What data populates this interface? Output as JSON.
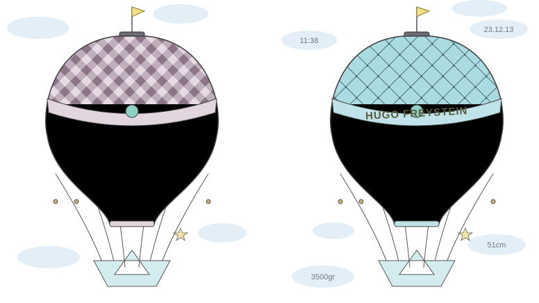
{
  "right_balloon": {
    "banner": "HUGO FREYSTEIN",
    "time": "11:38",
    "date": "23.12.13",
    "length": "51cm",
    "weight": "3500gr"
  }
}
